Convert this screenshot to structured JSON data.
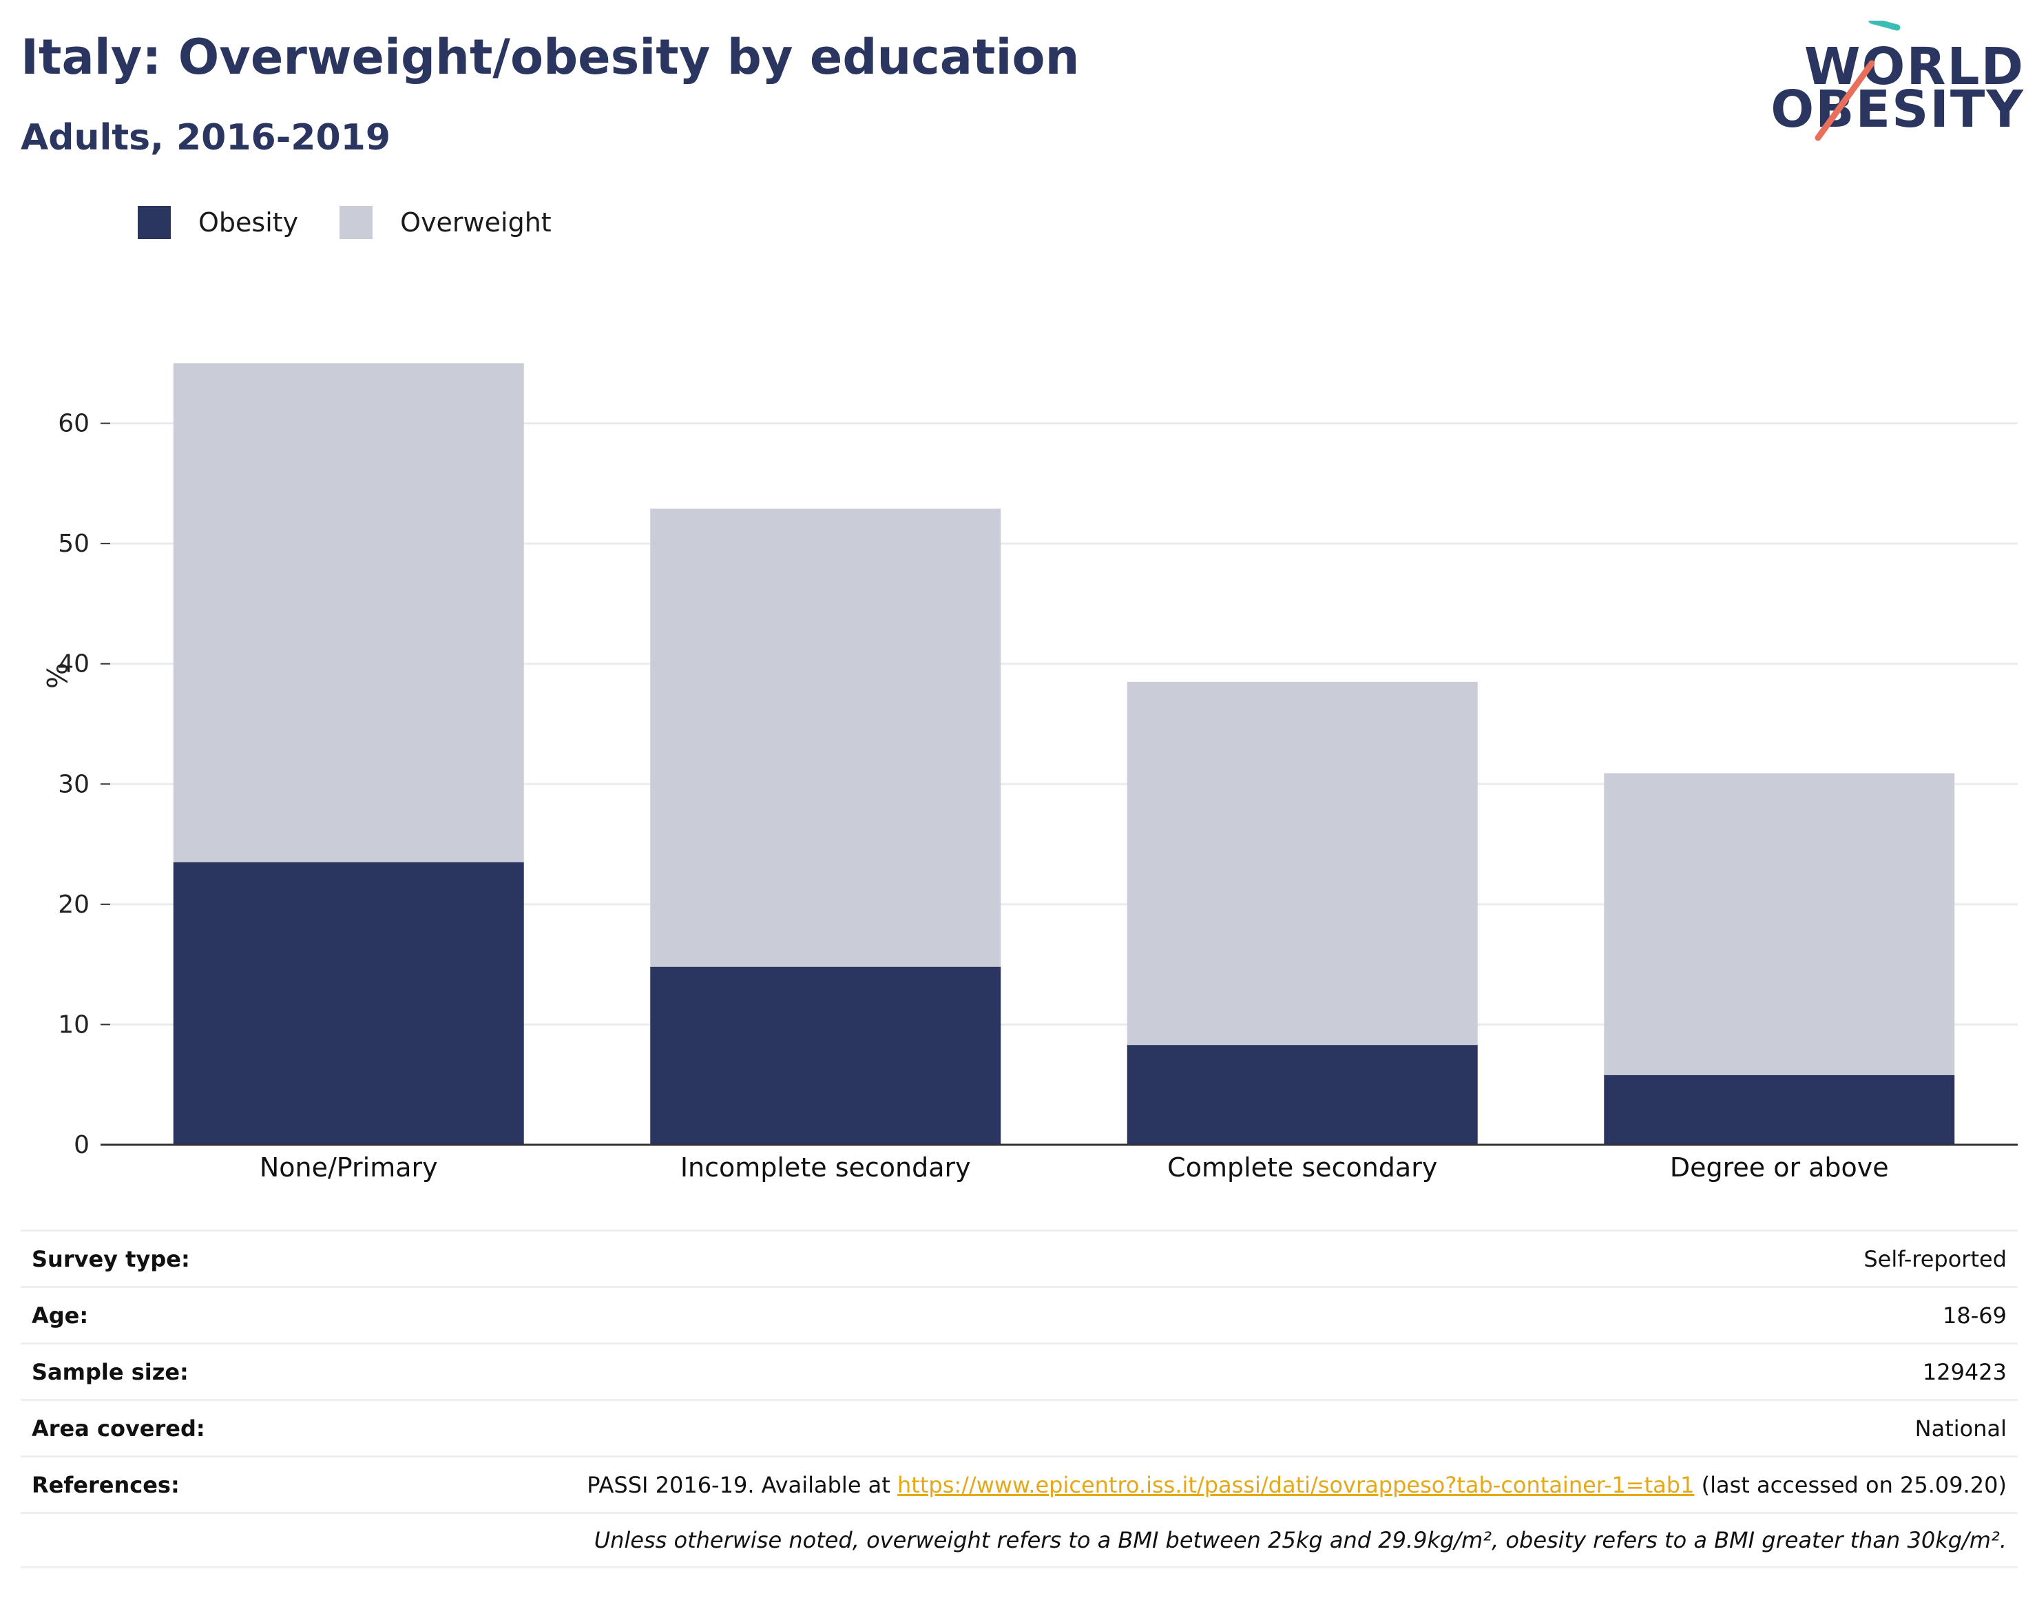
{
  "header": {
    "title": "Italy: Overweight/obesity by education",
    "subtitle": "Adults, 2016-2019"
  },
  "logo": {
    "line1": "WORLD",
    "line2": "OBESITY",
    "colors": {
      "text": "#2b3660",
      "slash_top": "#3bbdb6",
      "slash_bottom": "#e8705a"
    }
  },
  "colors": {
    "obesity": "#2b3660",
    "overweight": "#cacdd8",
    "grid": "#e9ebf0",
    "axis": "#333333",
    "link": "#e6a817"
  },
  "chart_data": {
    "type": "bar",
    "stacked": true,
    "categories": [
      "None/Primary",
      "Incomplete secondary",
      "Complete secondary",
      "Degree or above"
    ],
    "series": [
      {
        "name": "Obesity",
        "values": [
          23.5,
          14.8,
          8.3,
          5.8
        ]
      },
      {
        "name": "Overweight",
        "values": [
          41.5,
          38.1,
          30.2,
          25.1
        ]
      }
    ],
    "totals": [
      65.0,
      52.9,
      38.5,
      30.9
    ],
    "ylabel": "%",
    "xlabel": "",
    "ylim": [
      0,
      70
    ],
    "yticks": [
      0,
      10,
      20,
      30,
      40,
      50,
      60
    ],
    "grid": true,
    "legend_position": "top-left"
  },
  "info": {
    "rows": [
      {
        "label": "Survey type:",
        "value": "Self-reported"
      },
      {
        "label": "Age:",
        "value": "18-69"
      },
      {
        "label": "Sample size:",
        "value": "129423"
      },
      {
        "label": "Area covered:",
        "value": "National"
      }
    ],
    "references": {
      "label": "References:",
      "prefix": "PASSI 2016-19. Available at ",
      "link": "https://www.epicentro.iss.it/passi/dati/sovrappeso?tab-container-1=tab1",
      "suffix": " (last accessed on 25.09.20)"
    },
    "note": "Unless otherwise noted, overweight refers to a BMI between 25kg and 29.9kg/m², obesity refers to a BMI greater than 30kg/m²."
  }
}
